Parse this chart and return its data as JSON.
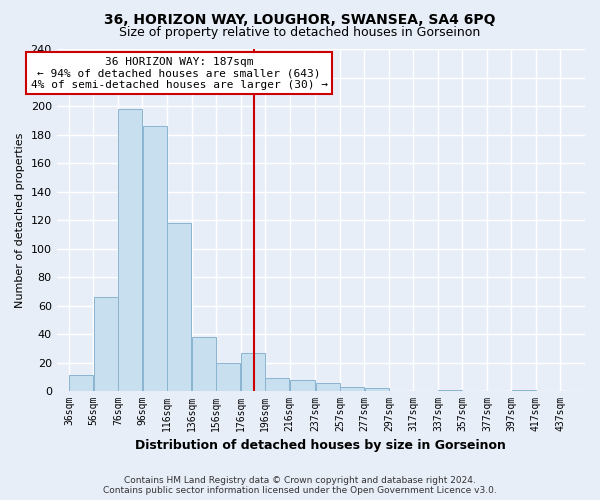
{
  "title": "36, HORIZON WAY, LOUGHOR, SWANSEA, SA4 6PQ",
  "subtitle": "Size of property relative to detached houses in Gorseinon",
  "xlabel": "Distribution of detached houses by size in Gorseinon",
  "ylabel": "Number of detached properties",
  "bar_left_edges": [
    36,
    56,
    76,
    96,
    116,
    136,
    156,
    176,
    196,
    216,
    237,
    257,
    277,
    297,
    317,
    337,
    357,
    377,
    397,
    417
  ],
  "bar_widths": [
    20,
    20,
    20,
    20,
    20,
    20,
    20,
    20,
    20,
    21,
    20,
    20,
    20,
    20,
    20,
    20,
    20,
    20,
    20,
    20
  ],
  "bar_heights": [
    11,
    66,
    198,
    186,
    118,
    38,
    20,
    27,
    9,
    8,
    6,
    3,
    2,
    0,
    0,
    1,
    0,
    0,
    1,
    0
  ],
  "bar_color": "#c8dff0",
  "bar_edge_color": "#8ab4d0",
  "property_line_x": 187,
  "property_line_color": "#cc0000",
  "ylim": [
    0,
    240
  ],
  "yticks": [
    0,
    20,
    40,
    60,
    80,
    100,
    120,
    140,
    160,
    180,
    200,
    220,
    240
  ],
  "tick_labels": [
    "36sqm",
    "56sqm",
    "76sqm",
    "96sqm",
    "116sqm",
    "136sqm",
    "156sqm",
    "176sqm",
    "196sqm",
    "216sqm",
    "237sqm",
    "257sqm",
    "277sqm",
    "297sqm",
    "317sqm",
    "337sqm",
    "357sqm",
    "377sqm",
    "397sqm",
    "417sqm",
    "437sqm"
  ],
  "annotation_title": "36 HORIZON WAY: 187sqm",
  "annotation_line1": "← 94% of detached houses are smaller (643)",
  "annotation_line2": "4% of semi-detached houses are larger (30) →",
  "annotation_box_color": "#ffffff",
  "annotation_box_edge": "#cc0000",
  "footnote1": "Contains HM Land Registry data © Crown copyright and database right 2024.",
  "footnote2": "Contains public sector information licensed under the Open Government Licence v3.0.",
  "background_color": "#e8eef8",
  "grid_color": "#ffffff"
}
